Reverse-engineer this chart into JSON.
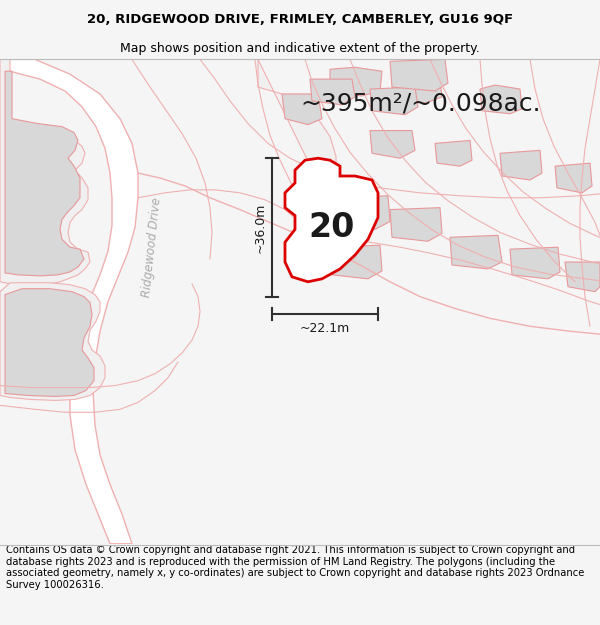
{
  "title_line1": "20, RIDGEWOOD DRIVE, FRIMLEY, CAMBERLEY, GU16 9QF",
  "title_line2": "Map shows position and indicative extent of the property.",
  "area_text": "~395m²/~0.098ac.",
  "label_number": "20",
  "dim_vertical": "~36.0m",
  "dim_horizontal": "~22.1m",
  "road_label": "Ridgewood Drive",
  "footer_text": "Contains OS data © Crown copyright and database right 2021. This information is subject to Crown copyright and database rights 2023 and is reproduced with the permission of HM Land Registry. The polygons (including the associated geometry, namely x, y co-ordinates) are subject to Crown copyright and database rights 2023 Ordnance Survey 100026316.",
  "bg_color": "#f5f5f5",
  "map_bg": "#ffffff",
  "plot_fill": "#ffffff",
  "plot_stroke": "#dd0000",
  "road_outline_color": "#f0b0b0",
  "road_fill_color": "#f8f0f0",
  "building_fill": "#d8d8d8",
  "building_stroke": "#e89898",
  "dim_color": "#303030",
  "title_fontsize": 9.5,
  "footer_fontsize": 7.2,
  "area_fontsize": 18,
  "number_fontsize": 24,
  "road_label_fontsize": 8.5,
  "dim_fontsize": 9
}
